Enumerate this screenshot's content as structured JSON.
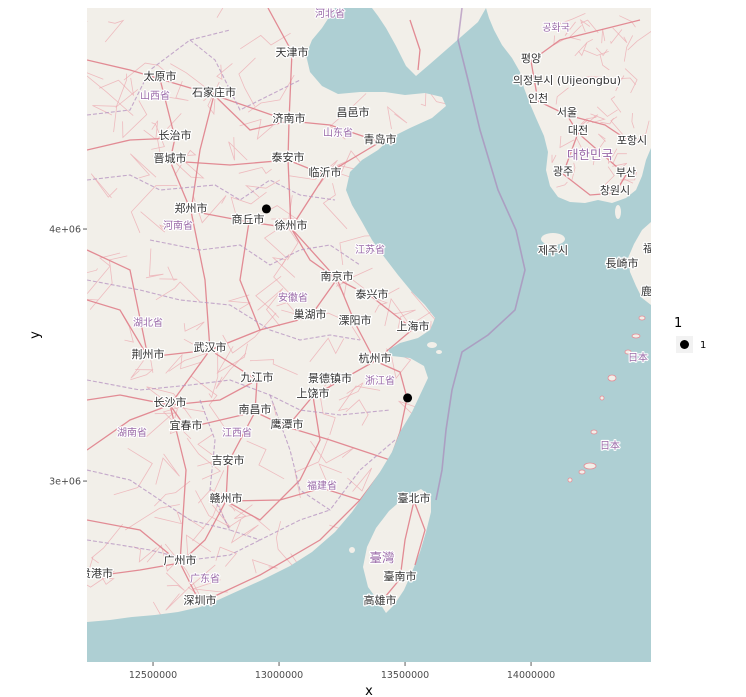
{
  "chart_data": {
    "type": "scatter",
    "xlabel": "x",
    "ylabel": "y",
    "xlim": [
      12238000,
      14476000
    ],
    "ylim": [
      2282000,
      4877000
    ],
    "x_ticks": [
      12500000,
      13000000,
      13500000,
      14000000
    ],
    "x_tick_labels": [
      "12500000",
      "13000000",
      "13500000",
      "14000000"
    ],
    "y_ticks": [
      3000000,
      4000000
    ],
    "y_tick_labels": [
      "3e+06",
      "4e+06"
    ],
    "grid": false,
    "series": [
      {
        "name": "1",
        "x": [
          12950000,
          13510000
        ],
        "y": [
          4080000,
          3330000
        ],
        "color": "#000000"
      }
    ],
    "legend": {
      "title": "1",
      "position": "right"
    }
  },
  "map": {
    "city_labels": [
      "天津市",
      "太原市",
      "石家庄市",
      "济南市",
      "昌邑市",
      "青岛市",
      "长治市",
      "晋城市",
      "泰安市",
      "临沂市",
      "郑州市",
      "商丘市",
      "徐州市",
      "南京市",
      "泰兴市",
      "巢湖市",
      "溧阳市",
      "上海市",
      "荆州市",
      "武汉市",
      "杭州市",
      "九江市",
      "景德镇市",
      "上饶市",
      "长沙市",
      "南昌市",
      "宜春市",
      "鹰潭市",
      "吉安市",
      "赣州市",
      "臺北市",
      "广州市",
      "贵港市",
      "深圳市",
      "臺南市",
      "高雄市",
      "평양",
      "의정부시 (Uijeongbu)",
      "인천",
      "서울",
      "대전",
      "포항시",
      "광주",
      "부산",
      "창원시",
      "제주시",
      "長崎市",
      "福",
      "鹿"
    ],
    "region_labels": [
      "河北省",
      "공화국",
      "山西省",
      "山东省",
      "대한민국",
      "河南省",
      "江苏省",
      "安徽省",
      "湖北省",
      "浙江省",
      "湖南省",
      "江西省",
      "福建省",
      "臺灣",
      "广东省",
      "日本",
      "日本"
    ]
  },
  "colors": {
    "land": "#f2efe9",
    "sea": "#aecfd3",
    "legend_key": "#f2f2f2",
    "axis_ticks": "#333333"
  }
}
